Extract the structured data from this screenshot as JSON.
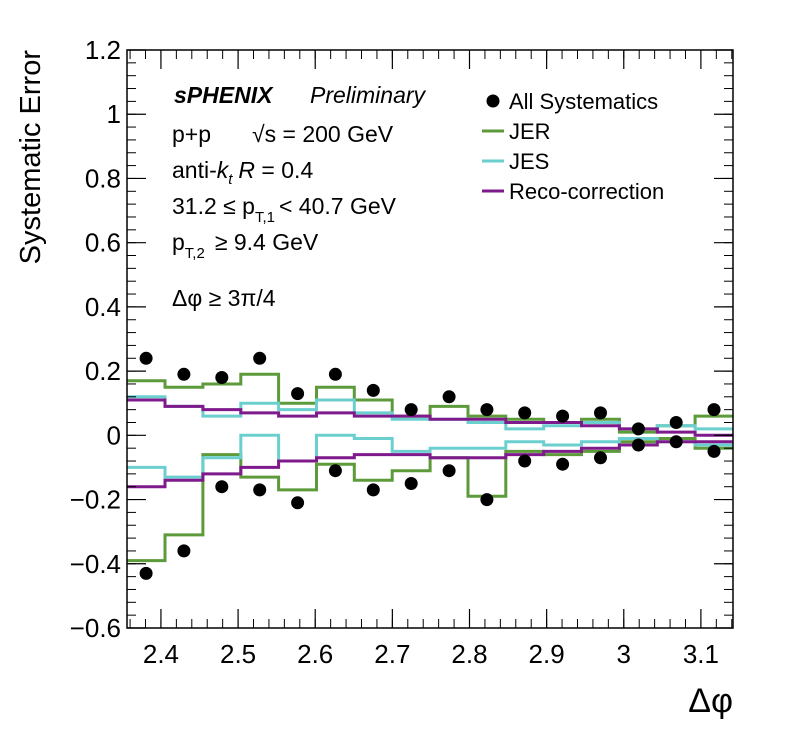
{
  "chart_data": {
    "type": "scatter",
    "xlabel": "Δφ",
    "ylabel": "Systematic Error",
    "xlim": [
      2.356,
      3.1416
    ],
    "ylim": [
      -0.6,
      1.2
    ],
    "x_ticks": [
      2.4,
      2.5,
      2.6,
      2.7,
      2.8,
      2.9,
      3.0,
      3.1
    ],
    "x_tick_labels": [
      "2.4",
      "2.5",
      "2.6",
      "2.7",
      "2.8",
      "2.9",
      "3",
      "3.1"
    ],
    "y_ticks": [
      -0.6,
      -0.4,
      -0.2,
      0,
      0.2,
      0.4,
      0.6,
      0.8,
      1.0,
      1.2
    ],
    "y_tick_labels": [
      "−0.6",
      "−0.4",
      "−0.2",
      "0",
      "0.2",
      "0.4",
      "0.6",
      "0.8",
      "1",
      "1.2"
    ],
    "grid": false,
    "legend_position": "top-right",
    "bin_edges": [
      2.3562,
      2.4053,
      2.4544,
      2.5035,
      2.5525,
      2.6016,
      2.6507,
      2.6998,
      2.7489,
      2.798,
      2.8471,
      2.8962,
      2.9452,
      2.9943,
      3.0434,
      3.0925,
      3.1416
    ],
    "points": {
      "name": "All Systematics",
      "x": [
        2.3807,
        2.4298,
        2.4789,
        2.528,
        2.5771,
        2.6262,
        2.6753,
        2.7244,
        2.7735,
        2.8225,
        2.8716,
        2.9207,
        2.9698,
        3.0189,
        3.068,
        3.117
      ],
      "upper": [
        0.24,
        0.19,
        0.18,
        0.24,
        0.13,
        0.19,
        0.14,
        0.08,
        0.12,
        0.08,
        0.07,
        0.06,
        0.07,
        0.02,
        0.04,
        0.08
      ],
      "lower": [
        -0.43,
        -0.36,
        -0.16,
        -0.17,
        -0.21,
        -0.11,
        -0.17,
        -0.15,
        -0.11,
        -0.2,
        -0.08,
        -0.09,
        -0.07,
        -0.03,
        -0.02,
        -0.05
      ]
    },
    "series": [
      {
        "name": "JER",
        "upper": [
          0.17,
          0.15,
          0.16,
          0.19,
          0.1,
          0.15,
          0.11,
          0.06,
          0.09,
          0.06,
          0.05,
          0.04,
          0.05,
          0.01,
          0.03,
          0.06
        ],
        "lower": [
          -0.39,
          -0.31,
          -0.06,
          -0.13,
          -0.17,
          -0.09,
          -0.14,
          -0.11,
          -0.07,
          -0.19,
          -0.05,
          -0.06,
          -0.05,
          -0.02,
          -0.01,
          -0.04
        ]
      },
      {
        "name": "JES",
        "upper": [
          0.12,
          0.09,
          0.06,
          0.1,
          0.08,
          0.11,
          0.07,
          0.05,
          0.05,
          0.04,
          0.02,
          0.03,
          0.04,
          0.02,
          0.03,
          0.02
        ],
        "lower": [
          -0.1,
          -0.13,
          -0.07,
          0.0,
          -0.08,
          0.0,
          -0.01,
          -0.05,
          -0.04,
          -0.04,
          -0.02,
          -0.03,
          -0.02,
          -0.01,
          -0.02,
          -0.03
        ]
      },
      {
        "name": "Reco-correction",
        "upper": [
          0.11,
          0.09,
          0.08,
          0.07,
          0.06,
          0.07,
          0.06,
          0.06,
          0.05,
          0.05,
          0.04,
          0.04,
          0.03,
          0.02,
          0.01,
          0.0
        ],
        "lower": [
          -0.16,
          -0.14,
          -0.12,
          -0.1,
          -0.08,
          -0.07,
          -0.06,
          -0.06,
          -0.07,
          -0.07,
          -0.06,
          -0.05,
          -0.04,
          -0.03,
          -0.02,
          -0.02
        ]
      }
    ],
    "colors": {
      "All Systematics": "#000000",
      "JER": "#5c9a3a",
      "JES": "#6ccfcf",
      "Reco-correction": "#7e1a8c"
    },
    "annotations": {
      "experiment": "sPHENIX",
      "status": "Preliminary",
      "collision": "p+p",
      "energy": "√s = 200 GeV",
      "algo_prefix": "anti-",
      "algo_k": "k",
      "algo_sub": "t",
      "algo_R": "R",
      "algo_suffix": " = 0.4",
      "pt1_lo": "31.2 ≤ p",
      "pt1_sub": "T,1",
      "pt1_hi": "< 40.7 GeV",
      "pt2_pre": "p",
      "pt2_sub": "T,2",
      "pt2_post": "≥ 9.4 GeV",
      "dphi": "Δφ  ≥ 3π/4"
    }
  }
}
